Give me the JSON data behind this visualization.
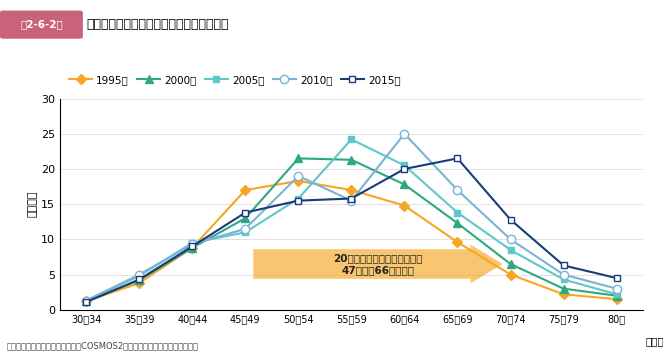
{
  "title_label": "年代別に見た中小企業の経営者年齢の分布",
  "title_badge": "第2-6-2図",
  "ylabel": "（万人）",
  "xlabel_suffix": "（歳）",
  "source": "資料：（株）帝国データバンク「COSMOS2（企業概要ファイル）」再編加工",
  "x_labels": [
    "30～34",
    "35～39",
    "40～44",
    "45～49",
    "50～54",
    "55～59",
    "60～64",
    "65～69",
    "70～74",
    "75～79",
    "80～"
  ],
  "ylim": [
    0,
    30
  ],
  "yticks": [
    0,
    5,
    10,
    15,
    20,
    25,
    30
  ],
  "series": [
    {
      "label": "1995年",
      "color": "#f5a623",
      "marker": "D",
      "markersize": 5,
      "markerfacecolor": "#f5a623",
      "values": [
        1.2,
        3.8,
        8.8,
        17.0,
        18.3,
        17.0,
        14.8,
        9.6,
        5.0,
        2.2,
        1.5
      ]
    },
    {
      "label": "2000年",
      "color": "#2ea87e",
      "marker": "^",
      "markersize": 6,
      "markerfacecolor": "#2ea87e",
      "values": [
        1.2,
        4.2,
        8.8,
        13.0,
        21.5,
        21.3,
        17.8,
        12.3,
        6.5,
        3.0,
        2.0
      ]
    },
    {
      "label": "2005年",
      "color": "#5ec8c8",
      "marker": "s",
      "markersize": 5,
      "markerfacecolor": "#5ec8c8",
      "values": [
        1.3,
        4.8,
        9.5,
        11.0,
        15.8,
        24.2,
        20.5,
        13.8,
        8.5,
        4.3,
        2.2
      ]
    },
    {
      "label": "2010年",
      "color": "#7ab3d4",
      "marker": "o",
      "markersize": 6,
      "markerfacecolor": "white",
      "values": [
        1.3,
        5.0,
        9.3,
        11.5,
        19.0,
        15.5,
        25.0,
        17.0,
        10.0,
        5.0,
        3.0
      ]
    },
    {
      "label": "2015年",
      "color": "#1a3a7a",
      "marker": "s",
      "markersize": 5,
      "markerfacecolor": "white",
      "values": [
        1.1,
        4.3,
        9.0,
        13.8,
        15.5,
        15.8,
        20.0,
        21.5,
        12.8,
        6.3,
        4.5
      ]
    }
  ],
  "arrow_text": "20年間で経営者年齢の山は、\n47歳から66歳へ移動",
  "arrow_color": "#f5a623",
  "arrow_alpha": 0.65,
  "badge_color": "#c8637a",
  "background_color": "#ffffff"
}
